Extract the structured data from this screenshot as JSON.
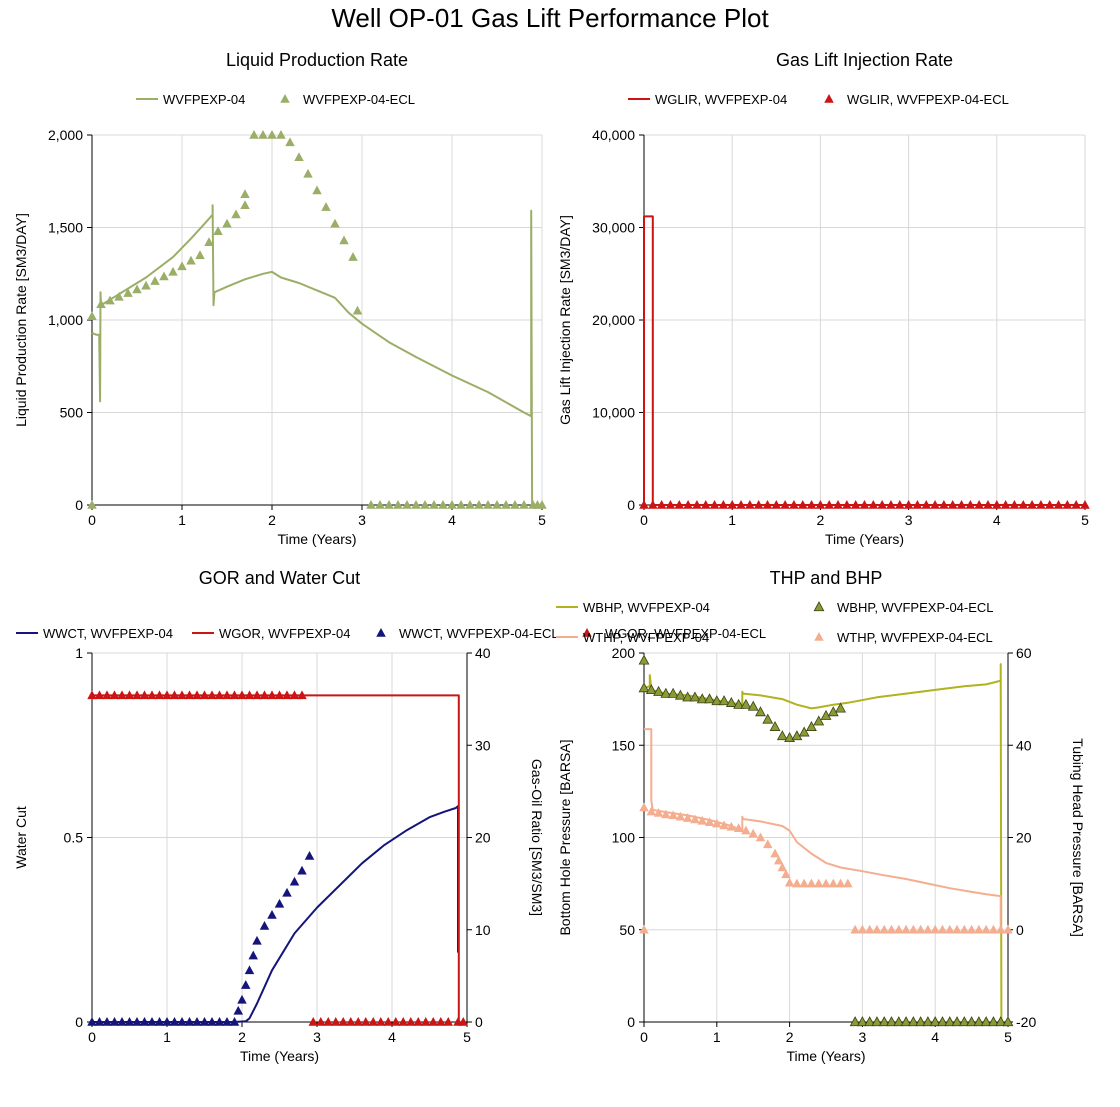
{
  "title": "Well OP-01 Gas Lift Performance Plot",
  "colors": {
    "liquid": "#9bae68",
    "gaslift": "#cc1414",
    "wwct": "#14147a",
    "wgor": "#cc1414",
    "wbhp_line": "#b0b21e",
    "wbhp_marker": "#6f7a2a",
    "wthp": "#f5ad8f"
  },
  "chart_data": [
    {
      "type": "line",
      "title": "Liquid Production Rate",
      "xlabel": "Time (Years)",
      "ylabel": "Liquid Production Rate [SM3/DAY]",
      "xlim": [
        0,
        5
      ],
      "ylim": [
        0,
        2000
      ],
      "xticks": [
        "0",
        "1",
        "2",
        "3",
        "4",
        "5"
      ],
      "yticks": [
        "0",
        "500",
        "1,000",
        "1,500",
        "2,000"
      ],
      "ytick_values": [
        0,
        500,
        1000,
        1500,
        2000
      ],
      "grid": true,
      "legend_position": "top",
      "series": [
        {
          "name": "WVFPEXP-04",
          "kind": "line",
          "color_key": "liquid",
          "x": [
            0,
            0.05,
            0.08,
            0.09,
            0.095,
            0.1,
            0.1,
            0.3,
            0.6,
            0.9,
            1.1,
            1.25,
            1.34,
            1.34,
            1.35,
            1.36,
            1.5,
            1.7,
            1.9,
            2.0,
            2.1,
            2.3,
            2.5,
            2.7,
            2.85,
            3.0,
            3.3,
            3.6,
            4.0,
            4.4,
            4.8,
            4.88,
            4.88,
            4.89,
            4.9
          ],
          "y": [
            930,
            920,
            920,
            560,
            1150,
            1080,
            1080,
            1140,
            1230,
            1340,
            1440,
            1520,
            1570,
            1620,
            1080,
            1150,
            1180,
            1220,
            1250,
            1260,
            1230,
            1200,
            1160,
            1120,
            1040,
            980,
            880,
            800,
            700,
            610,
            500,
            480,
            1590,
            0,
            0
          ]
        },
        {
          "name": "WVFPEXP-04-ECL",
          "kind": "markers",
          "color_key": "liquid",
          "x": [
            0,
            0,
            0.1,
            0.2,
            0.3,
            0.4,
            0.5,
            0.6,
            0.7,
            0.8,
            0.9,
            1.0,
            1.1,
            1.2,
            1.3,
            1.4,
            1.5,
            1.6,
            1.7,
            1.7,
            1.8,
            1.9,
            2.0,
            2.1,
            2.2,
            2.3,
            2.4,
            2.5,
            2.6,
            2.7,
            2.8,
            2.9,
            2.95,
            3.1,
            3.2,
            3.3,
            3.4,
            3.5,
            3.6,
            3.7,
            3.8,
            3.9,
            4.0,
            4.1,
            4.2,
            4.3,
            4.4,
            4.5,
            4.6,
            4.7,
            4.8,
            4.9,
            4.95,
            5.0
          ],
          "y": [
            1020,
            0,
            1085,
            1105,
            1125,
            1145,
            1165,
            1185,
            1210,
            1235,
            1260,
            1290,
            1320,
            1350,
            1420,
            1480,
            1520,
            1570,
            1620,
            1680,
            2000,
            2000,
            2000,
            2000,
            1960,
            1880,
            1790,
            1700,
            1610,
            1520,
            1430,
            1340,
            1050,
            0,
            0,
            0,
            0,
            0,
            0,
            0,
            0,
            0,
            0,
            0,
            0,
            0,
            0,
            0,
            0,
            0,
            0,
            0,
            0,
            0
          ]
        }
      ]
    },
    {
      "type": "line",
      "title": "Gas Lift Injection Rate",
      "xlabel": "Time (Years)",
      "ylabel": "Gas Lift Injection Rate [SM3/DAY]",
      "xlim": [
        0,
        5
      ],
      "ylim": [
        0,
        40000
      ],
      "xticks": [
        "0",
        "1",
        "2",
        "3",
        "4",
        "5"
      ],
      "yticks": [
        "0",
        "10,000",
        "20,000",
        "30,000",
        "40,000"
      ],
      "ytick_values": [
        0,
        10000,
        20000,
        30000,
        40000
      ],
      "grid": true,
      "legend_position": "top",
      "series": [
        {
          "name": "WGLIR, WVFPEXP-04",
          "kind": "line",
          "color_key": "gaslift",
          "x": [
            0,
            0,
            0.1,
            0.1,
            5.0
          ],
          "y": [
            0,
            31200,
            31200,
            0,
            0
          ]
        },
        {
          "name": "WGLIR, WVFPEXP-04-ECL",
          "kind": "markers",
          "color_key": "gaslift",
          "x": [
            0,
            0.1,
            0.2,
            0.3,
            0.4,
            0.5,
            0.6,
            0.7,
            0.8,
            0.9,
            1.0,
            1.1,
            1.2,
            1.3,
            1.4,
            1.5,
            1.6,
            1.7,
            1.8,
            1.9,
            2.0,
            2.1,
            2.2,
            2.3,
            2.4,
            2.5,
            2.6,
            2.7,
            2.8,
            2.9,
            3.0,
            3.1,
            3.2,
            3.3,
            3.4,
            3.5,
            3.6,
            3.7,
            3.8,
            3.9,
            4.0,
            4.1,
            4.2,
            4.3,
            4.4,
            4.5,
            4.6,
            4.7,
            4.8,
            4.9,
            5.0
          ],
          "y": [
            0,
            0,
            0,
            0,
            0,
            0,
            0,
            0,
            0,
            0,
            0,
            0,
            0,
            0,
            0,
            0,
            0,
            0,
            0,
            0,
            0,
            0,
            0,
            0,
            0,
            0,
            0,
            0,
            0,
            0,
            0,
            0,
            0,
            0,
            0,
            0,
            0,
            0,
            0,
            0,
            0,
            0,
            0,
            0,
            0,
            0,
            0,
            0,
            0,
            0,
            0
          ]
        }
      ]
    },
    {
      "type": "line",
      "title": "GOR and Water Cut",
      "xlabel": "Time (Years)",
      "ylabel": "Water Cut",
      "y2label": "Gas-Oil Ratio [SM3/SM3]",
      "xlim": [
        0,
        5
      ],
      "ylim": [
        0,
        1
      ],
      "y2lim": [
        0,
        40
      ],
      "xticks": [
        "0",
        "1",
        "2",
        "3",
        "4",
        "5"
      ],
      "yticks": [
        "0",
        "0.5",
        "1"
      ],
      "ytick_values": [
        0,
        0.5,
        1
      ],
      "y2ticks": [
        "0",
        "10",
        "20",
        "30",
        "40"
      ],
      "y2tick_values": [
        0,
        10,
        20,
        30,
        40
      ],
      "grid": true,
      "legend_position": "top",
      "series": [
        {
          "name": "WWCT, WVFPEXP-04",
          "kind": "line",
          "axis": "y",
          "color_key": "wwct",
          "x": [
            0,
            1.9,
            2.05,
            2.1,
            2.2,
            2.4,
            2.7,
            3.0,
            3.3,
            3.6,
            3.9,
            4.2,
            4.5,
            4.7,
            4.85,
            4.88,
            4.88,
            4.89
          ],
          "y": [
            0,
            0,
            0.002,
            0.01,
            0.05,
            0.14,
            0.24,
            0.31,
            0.37,
            0.43,
            0.48,
            0.52,
            0.555,
            0.57,
            0.58,
            0.585,
            0.19,
            0.19
          ]
        },
        {
          "name": "WGOR, WVFPEXP-04",
          "kind": "line",
          "axis": "y2",
          "color_key": "wgor",
          "x": [
            0,
            4.89,
            4.89,
            4.9
          ],
          "y": [
            35.4,
            35.4,
            0,
            0
          ]
        },
        {
          "name": "WWCT, WVFPEXP-04-ECL",
          "kind": "markers",
          "axis": "y",
          "color_key": "wwct",
          "x": [
            0,
            0.1,
            0.2,
            0.3,
            0.4,
            0.5,
            0.6,
            0.7,
            0.8,
            0.9,
            1.0,
            1.1,
            1.2,
            1.3,
            1.4,
            1.5,
            1.6,
            1.7,
            1.8,
            1.9,
            1.95,
            2.0,
            2.05,
            2.1,
            2.15,
            2.2,
            2.3,
            2.4,
            2.5,
            2.6,
            2.7,
            2.8,
            2.9
          ],
          "y": [
            0,
            0,
            0,
            0,
            0,
            0,
            0,
            0,
            0,
            0,
            0,
            0,
            0,
            0,
            0,
            0,
            0,
            0,
            0,
            0,
            0.03,
            0.06,
            0.1,
            0.14,
            0.18,
            0.22,
            0.26,
            0.29,
            0.32,
            0.35,
            0.38,
            0.41,
            0.45
          ]
        },
        {
          "name": "WGOR, WVFPEXP-04-ECL",
          "kind": "markers",
          "axis": "y2",
          "color_key": "wgor",
          "x": [
            0,
            0.1,
            0.2,
            0.3,
            0.4,
            0.5,
            0.6,
            0.7,
            0.8,
            0.9,
            1.0,
            1.1,
            1.2,
            1.3,
            1.4,
            1.5,
            1.6,
            1.7,
            1.8,
            1.9,
            2.0,
            2.1,
            2.2,
            2.3,
            2.4,
            2.5,
            2.6,
            2.7,
            2.8,
            2.95,
            3.05,
            3.15,
            3.25,
            3.35,
            3.45,
            3.55,
            3.65,
            3.75,
            3.85,
            3.95,
            4.05,
            4.15,
            4.25,
            4.35,
            4.45,
            4.55,
            4.65,
            4.75,
            4.88,
            4.95
          ],
          "y": [
            35.4,
            35.4,
            35.4,
            35.4,
            35.4,
            35.4,
            35.4,
            35.4,
            35.4,
            35.4,
            35.4,
            35.4,
            35.4,
            35.4,
            35.4,
            35.4,
            35.4,
            35.4,
            35.4,
            35.4,
            35.4,
            35.4,
            35.4,
            35.4,
            35.4,
            35.4,
            35.4,
            35.4,
            35.4,
            0,
            0,
            0,
            0,
            0,
            0,
            0,
            0,
            0,
            0,
            0,
            0,
            0,
            0,
            0,
            0,
            0,
            0,
            0,
            0,
            0
          ]
        }
      ]
    },
    {
      "type": "line",
      "title": "THP and BHP",
      "xlabel": "Time (Years)",
      "ylabel": "Bottom Hole Pressure [BARSA]",
      "y2label": "Tubing Head Pressure [BARSA]",
      "xlim": [
        0,
        5
      ],
      "ylim": [
        0,
        200
      ],
      "y2lim": [
        -20,
        60
      ],
      "xticks": [
        "0",
        "1",
        "2",
        "3",
        "4",
        "5"
      ],
      "yticks": [
        "0",
        "50",
        "100",
        "150",
        "200"
      ],
      "ytick_values": [
        0,
        50,
        100,
        150,
        200
      ],
      "y2ticks": [
        "-20",
        "0",
        "20",
        "40",
        "60"
      ],
      "y2tick_values": [
        -20,
        0,
        20,
        40,
        60
      ],
      "grid": true,
      "legend_position": "top",
      "series": [
        {
          "name": "WBHP, WVFPEXP-04",
          "kind": "line",
          "axis": "y",
          "color_key": "wbhp_line",
          "x": [
            0,
            0.08,
            0.08,
            0.1,
            0.3,
            0.6,
            0.9,
            1.2,
            1.35,
            1.35,
            1.36,
            1.6,
            1.9,
            2.1,
            2.3,
            2.4,
            2.6,
            2.8,
            3.2,
            3.6,
            4.0,
            4.4,
            4.7,
            4.9,
            4.9,
            4.91
          ],
          "y": [
            181,
            182,
            188,
            180,
            178,
            177,
            175,
            173,
            172,
            179,
            178,
            177,
            175,
            172,
            170,
            170.5,
            172,
            173,
            176,
            178,
            180,
            182,
            183,
            185,
            194,
            0
          ]
        },
        {
          "name": "WBHP, WVFPEXP-04-ECL",
          "kind": "markers",
          "axis": "y",
          "color_key": "wbhp_marker",
          "x": [
            0,
            0,
            0.1,
            0.2,
            0.3,
            0.4,
            0.5,
            0.6,
            0.7,
            0.8,
            0.9,
            1.0,
            1.1,
            1.2,
            1.3,
            1.4,
            1.5,
            1.6,
            1.7,
            1.8,
            1.9,
            2.0,
            2.1,
            2.2,
            2.3,
            2.4,
            2.5,
            2.6,
            2.7,
            2.9,
            3.0,
            3.1,
            3.2,
            3.3,
            3.4,
            3.5,
            3.6,
            3.7,
            3.8,
            3.9,
            4.0,
            4.1,
            4.2,
            4.3,
            4.4,
            4.5,
            4.6,
            4.7,
            4.8,
            4.9,
            5.0
          ],
          "y": [
            196,
            181,
            180,
            179,
            178,
            178,
            177,
            176,
            176,
            175,
            175,
            174,
            174,
            173,
            172,
            172,
            171,
            168,
            164,
            160,
            155,
            154,
            155,
            157,
            160,
            163,
            166,
            168,
            170,
            0,
            0,
            0,
            0,
            0,
            0,
            0,
            0,
            0,
            0,
            0,
            0,
            0,
            0,
            0,
            0,
            0,
            0,
            0,
            0,
            0,
            0
          ]
        },
        {
          "name": "WTHP, WVFPEXP-04",
          "kind": "line",
          "axis": "y2",
          "color_key": "wthp",
          "x": [
            0,
            0.1,
            0.1,
            0.12,
            0.3,
            0.6,
            0.9,
            1.2,
            1.35,
            1.35,
            1.36,
            1.6,
            1.9,
            2.0,
            2.1,
            2.3,
            2.5,
            2.7,
            3.0,
            3.3,
            3.6,
            3.9,
            4.2,
            4.5,
            4.7,
            4.9,
            4.9,
            4.91
          ],
          "y": [
            43.5,
            43.5,
            28,
            26,
            25.5,
            24.8,
            23.8,
            22.5,
            21.5,
            24.5,
            24,
            23.5,
            22.5,
            21.5,
            19,
            16.5,
            14.5,
            13.5,
            12.7,
            11.8,
            11,
            10,
            9,
            8.2,
            7.7,
            7.3,
            0,
            0
          ]
        },
        {
          "name": "WTHP, WVFPEXP-04-ECL",
          "kind": "markers",
          "axis": "y2",
          "color_key": "wthp",
          "x": [
            0,
            0,
            0.1,
            0.2,
            0.3,
            0.4,
            0.5,
            0.6,
            0.7,
            0.8,
            0.9,
            1.0,
            1.1,
            1.2,
            1.3,
            1.4,
            1.5,
            1.6,
            1.7,
            1.8,
            1.85,
            1.9,
            1.95,
            2.0,
            2.1,
            2.2,
            2.3,
            2.4,
            2.5,
            2.6,
            2.7,
            2.8,
            2.9,
            3.0,
            3.1,
            3.2,
            3.3,
            3.4,
            3.5,
            3.6,
            3.7,
            3.8,
            3.9,
            4.0,
            4.1,
            4.2,
            4.3,
            4.4,
            4.5,
            4.6,
            4.7,
            4.8,
            4.9,
            5.0
          ],
          "y": [
            26.5,
            0,
            25.6,
            25.3,
            25,
            24.8,
            24.5,
            24.2,
            23.9,
            23.6,
            23.3,
            23,
            22.6,
            22.3,
            22,
            21.5,
            20.8,
            20,
            18.5,
            16.5,
            15,
            13.5,
            12,
            10.2,
            10,
            10,
            10,
            10,
            10,
            10,
            10,
            10,
            0,
            0,
            0,
            0,
            0,
            0,
            0,
            0,
            0,
            0,
            0,
            0,
            0,
            0,
            0,
            0,
            0,
            0,
            0,
            0,
            0,
            0
          ]
        }
      ]
    }
  ]
}
